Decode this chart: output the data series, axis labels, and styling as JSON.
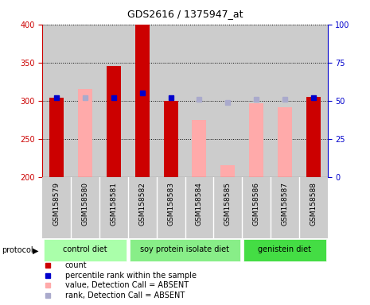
{
  "title": "GDS2616 / 1375947_at",
  "samples": [
    "GSM158579",
    "GSM158580",
    "GSM158581",
    "GSM158582",
    "GSM158583",
    "GSM158584",
    "GSM158585",
    "GSM158586",
    "GSM158587",
    "GSM158588"
  ],
  "count_values": [
    304,
    null,
    346,
    400,
    300,
    null,
    null,
    null,
    null,
    305
  ],
  "absent_values": [
    null,
    315,
    null,
    null,
    null,
    275,
    215,
    297,
    291,
    null
  ],
  "percentile_rank": [
    52,
    null,
    52,
    55,
    52,
    null,
    null,
    null,
    null,
    52
  ],
  "absent_rank": [
    null,
    52,
    null,
    null,
    null,
    51,
    49,
    51,
    51,
    null
  ],
  "ylim_left": [
    200,
    400
  ],
  "ylim_right": [
    0,
    100
  ],
  "yticks_left": [
    200,
    250,
    300,
    350,
    400
  ],
  "yticks_right": [
    0,
    25,
    50,
    75,
    100
  ],
  "protocols": [
    {
      "label": "control diet",
      "start": 0,
      "end": 3,
      "color": "#aaffaa"
    },
    {
      "label": "soy protein isolate diet",
      "start": 3,
      "end": 7,
      "color": "#88ee88"
    },
    {
      "label": "genistein diet",
      "start": 7,
      "end": 10,
      "color": "#44dd44"
    }
  ],
  "bar_width": 0.5,
  "count_color": "#cc0000",
  "absent_value_color": "#ffaaaa",
  "percentile_color": "#0000cc",
  "absent_rank_color": "#aaaacc",
  "bg_color": "#cccccc",
  "left_axis_color": "#cc0000",
  "right_axis_color": "#0000cc",
  "grid_color": "black",
  "title_fontsize": 9,
  "tick_fontsize": 7,
  "label_fontsize": 6.5,
  "legend_fontsize": 7,
  "protocol_fontsize": 7
}
